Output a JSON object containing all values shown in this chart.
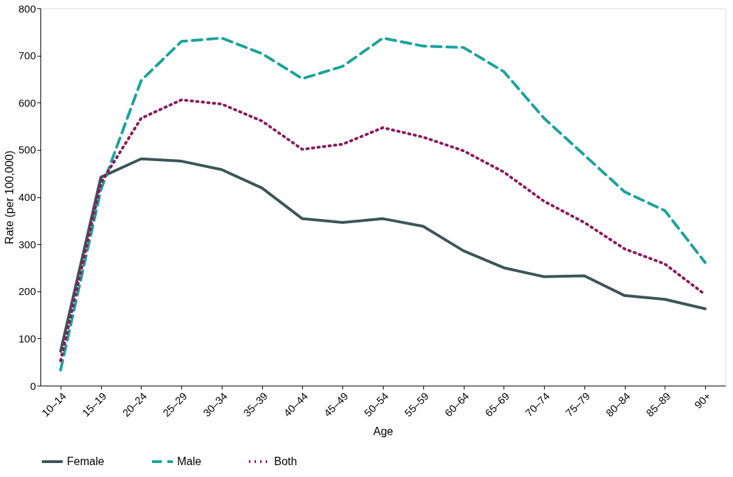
{
  "chart_data": {
    "type": "line",
    "xlabel": "Age",
    "ylabel": "Rate (per 100,000)",
    "categories": [
      "10–14",
      "15–19",
      "20–24",
      "25–29",
      "30–34",
      "35–39",
      "40–44",
      "45–49",
      "50–54",
      "55–59",
      "60–64",
      "65–69",
      "70–74",
      "75–79",
      "80–84",
      "85–89",
      "90+"
    ],
    "series": [
      {
        "name": "Female",
        "color": "#3d5556",
        "line_style": "solid",
        "values": [
          73,
          442,
          481,
          476,
          458,
          419,
          354,
          346,
          354,
          338,
          286,
          250,
          231,
          233,
          191,
          183,
          163
        ]
      },
      {
        "name": "Male",
        "color": "#1aa39a",
        "line_style": "dashed",
        "values": [
          33,
          415,
          647,
          730,
          737,
          704,
          651,
          677,
          737,
          720,
          717,
          666,
          567,
          489,
          411,
          371,
          261
        ]
      },
      {
        "name": "Both",
        "color": "#8b1a5a",
        "line_style": "dotted",
        "values": [
          53,
          430,
          567,
          606,
          597,
          561,
          501,
          512,
          547,
          527,
          498,
          453,
          391,
          346,
          290,
          258,
          193
        ]
      }
    ],
    "ylim": [
      0,
      800
    ],
    "yticks": [
      0,
      100,
      200,
      300,
      400,
      500,
      600,
      700,
      800
    ],
    "grid": false,
    "legend": "bottom",
    "marker": "none"
  }
}
